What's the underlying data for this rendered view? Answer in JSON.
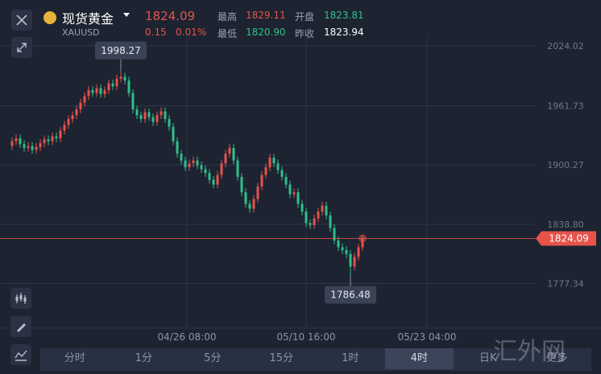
{
  "header": {
    "name": "现货黄金",
    "symbol": "XAUUSD",
    "price": "1824.09",
    "change": "0.15",
    "change_pct": "0.01%",
    "stats": [
      {
        "label": "最高",
        "value": "1829.11"
      },
      {
        "label": "开盘",
        "value": "1823.81"
      },
      {
        "label": "最低",
        "value": "1820.90"
      },
      {
        "label": "昨收",
        "value": "1823.94"
      }
    ]
  },
  "chart_data": {
    "type": "candlestick",
    "up_color": "#e5534b",
    "down_color": "#2fbf8c",
    "open": [
      1920,
      1925,
      1928,
      1922,
      1918,
      1920,
      1916,
      1919,
      1923,
      1927,
      1925,
      1930,
      1928,
      1936,
      1942,
      1948,
      1952,
      1958,
      1965,
      1972,
      1978,
      1975,
      1980,
      1974,
      1978,
      1985,
      1982,
      1990,
      1992,
      1988,
      1975,
      1958,
      1952,
      1948,
      1955,
      1950,
      1945,
      1952,
      1956,
      1948,
      1940,
      1925,
      1912,
      1905,
      1898,
      1902,
      1905,
      1900,
      1896,
      1892,
      1885,
      1880,
      1890,
      1902,
      1912,
      1918,
      1905,
      1888,
      1872,
      1860,
      1855,
      1865,
      1878,
      1890,
      1898,
      1908,
      1902,
      1895,
      1888,
      1880,
      1870,
      1872,
      1860,
      1852,
      1840,
      1838,
      1845,
      1852,
      1858,
      1848,
      1835,
      1822,
      1815,
      1812,
      1808,
      1795,
      1805,
      1815
    ],
    "high": [
      1929,
      1932,
      1932,
      1926,
      1924,
      1924,
      1923,
      1927,
      1931,
      1931,
      1934,
      1934,
      1940,
      1946,
      1952,
      1956,
      1962,
      1969,
      1976,
      1982,
      1982,
      1984,
      1984,
      1982,
      1989,
      1989,
      1994,
      1998.27,
      1996,
      1992,
      1979,
      1962,
      1956,
      1959,
      1959,
      1954,
      1956,
      1960,
      1960,
      1952,
      1944,
      1929,
      1916,
      1909,
      1906,
      1909,
      1909,
      1904,
      1900,
      1896,
      1889,
      1894,
      1906,
      1916,
      1922,
      1922,
      1909,
      1892,
      1876,
      1864,
      1869,
      1882,
      1894,
      1902,
      1912,
      1912,
      1906,
      1899,
      1892,
      1884,
      1876,
      1876,
      1864,
      1856,
      1844,
      1849,
      1856,
      1862,
      1862,
      1852,
      1839,
      1826,
      1819,
      1816,
      1812,
      1809,
      1819,
      1828
    ],
    "low": [
      1916,
      1921,
      1918,
      1914,
      1914,
      1912,
      1912,
      1915,
      1919,
      1921,
      1921,
      1924,
      1924,
      1932,
      1938,
      1944,
      1948,
      1954,
      1961,
      1968,
      1971,
      1971,
      1970,
      1970,
      1974,
      1978,
      1978,
      1986,
      1984,
      1971,
      1954,
      1948,
      1944,
      1944,
      1946,
      1941,
      1941,
      1948,
      1944,
      1936,
      1921,
      1908,
      1901,
      1894,
      1894,
      1898,
      1896,
      1892,
      1888,
      1881,
      1876,
      1876,
      1886,
      1898,
      1908,
      1901,
      1884,
      1868,
      1856,
      1851,
      1851,
      1861,
      1874,
      1886,
      1894,
      1898,
      1891,
      1884,
      1876,
      1866,
      1866,
      1856,
      1848,
      1836,
      1834,
      1834,
      1841,
      1848,
      1844,
      1831,
      1818,
      1811,
      1808,
      1804,
      1786.48,
      1791,
      1801,
      1811
    ],
    "close": [
      1925,
      1928,
      1922,
      1918,
      1920,
      1916,
      1919,
      1923,
      1927,
      1925,
      1930,
      1928,
      1936,
      1942,
      1948,
      1952,
      1958,
      1965,
      1972,
      1978,
      1975,
      1980,
      1974,
      1978,
      1985,
      1982,
      1990,
      1992,
      1988,
      1975,
      1958,
      1952,
      1948,
      1955,
      1950,
      1945,
      1952,
      1956,
      1948,
      1940,
      1925,
      1912,
      1905,
      1898,
      1902,
      1905,
      1900,
      1896,
      1892,
      1885,
      1880,
      1890,
      1902,
      1912,
      1918,
      1905,
      1888,
      1872,
      1860,
      1855,
      1865,
      1878,
      1890,
      1898,
      1908,
      1902,
      1895,
      1888,
      1880,
      1870,
      1872,
      1860,
      1852,
      1840,
      1838,
      1845,
      1852,
      1858,
      1848,
      1835,
      1822,
      1815,
      1812,
      1808,
      1795,
      1805,
      1815,
      1824.09
    ],
    "ylim": [
      1731,
      2034
    ],
    "yticks": [
      {
        "value": 1777.34,
        "label": "1777.34"
      },
      {
        "value": 1838.8,
        "label": "1838.80"
      },
      {
        "value": 1900.27,
        "label": "1900.27"
      },
      {
        "value": 1961.73,
        "label": "1961.73"
      },
      {
        "value": 2024.02,
        "label": "2024.02"
      }
    ],
    "xlim": [
      0,
      130
    ],
    "xticks": [
      {
        "value": 43.4,
        "label": "04/26 08:00"
      },
      {
        "value": 73,
        "label": "05/10 16:00"
      },
      {
        "value": 103,
        "label": "05/23 04:00"
      }
    ],
    "grid": true
  },
  "tabs": [
    "分时",
    "1分",
    "5分",
    "15分",
    "1时",
    "4时",
    "日K",
    "更多"
  ],
  "active_tab": 5,
  "watermark": "汇外网"
}
